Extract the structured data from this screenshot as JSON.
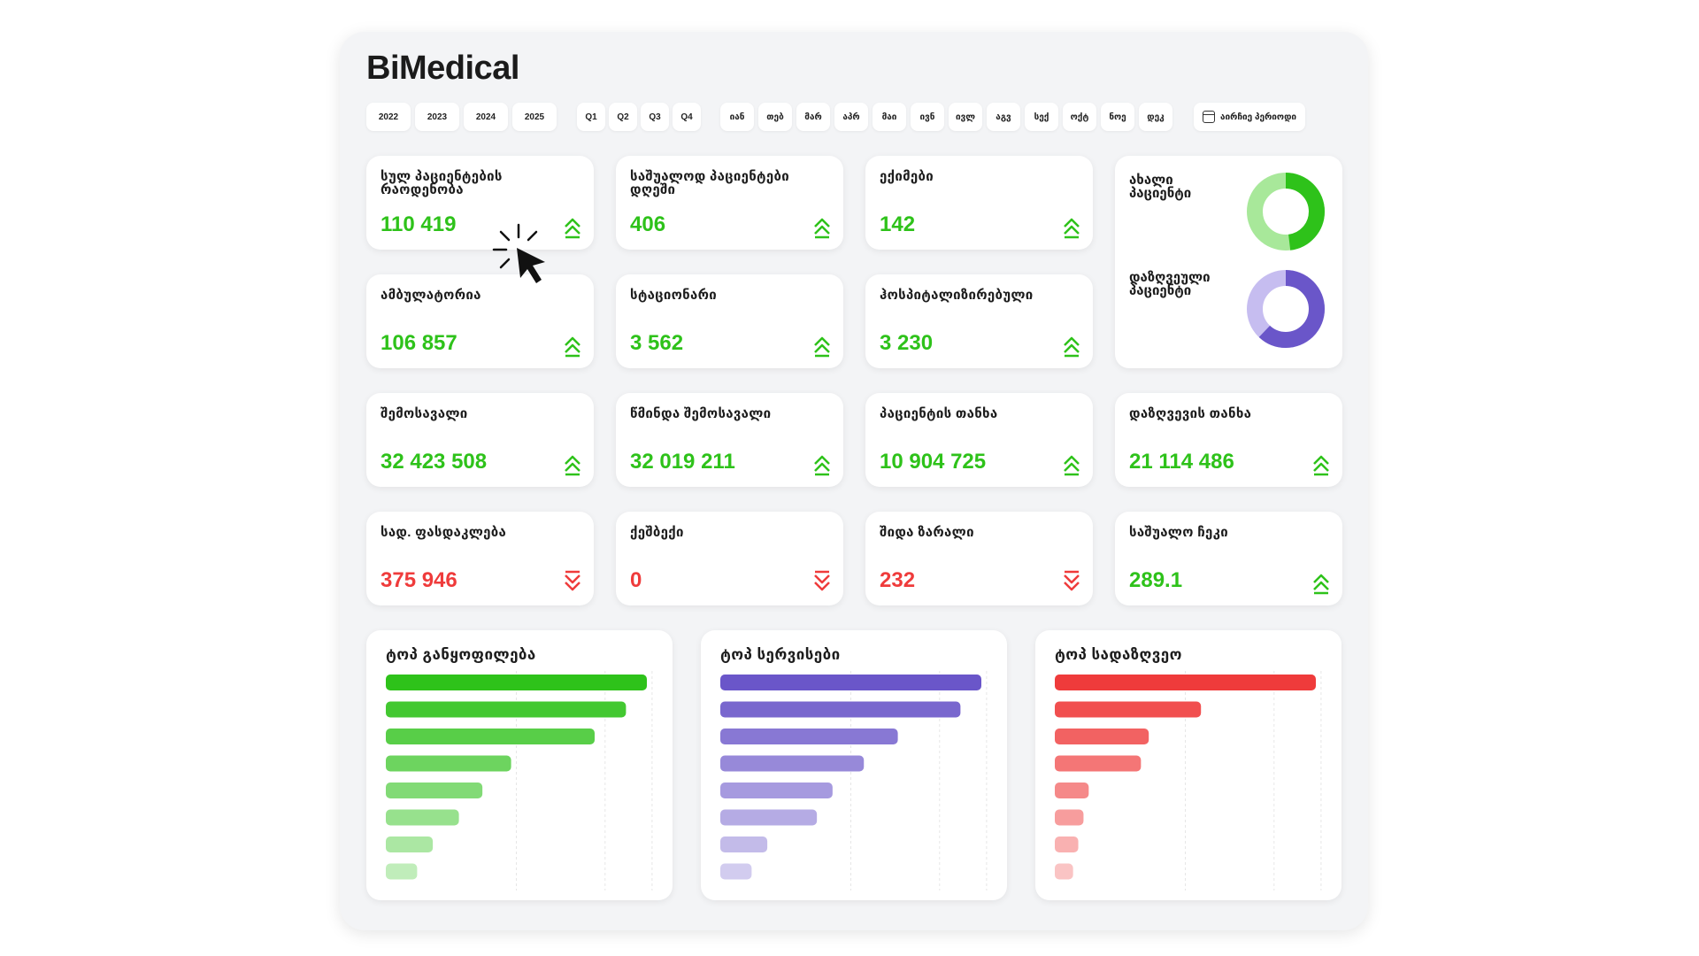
{
  "app": {
    "title": "BiMedical"
  },
  "filters": {
    "years": [
      "2022",
      "2023",
      "2024",
      "2025"
    ],
    "quarters": [
      "Q1",
      "Q2",
      "Q3",
      "Q4"
    ],
    "months": [
      "იან",
      "თებ",
      "მარ",
      "აპრ",
      "მაი",
      "ივნ",
      "ივლ",
      "აგვ",
      "სექ",
      "ოქტ",
      "ნოე",
      "დეკ"
    ],
    "period_label": "აირჩიე პერიოდი"
  },
  "kpis": {
    "total_patients": {
      "title": "სულ პაციენტების რაოდენობა",
      "value": "110 419",
      "trend": "up"
    },
    "avg_patients_daily": {
      "title": "საშუალოდ პაციენტები დღეში",
      "value": "406",
      "trend": "up"
    },
    "doctors": {
      "title": "ექიმები",
      "value": "142",
      "trend": "up"
    },
    "ambulatory": {
      "title": "ამბულატორია",
      "value": "106 857",
      "trend": "up"
    },
    "stationary": {
      "title": "სტაციონარი",
      "value": "3 562",
      "trend": "up"
    },
    "hospitalized": {
      "title": "ჰოსპიტალიზირებული",
      "value": "3 230",
      "trend": "up"
    },
    "income": {
      "title": "შემოსავალი",
      "value": "32 423 508",
      "trend": "up"
    },
    "net_income": {
      "title": "წმინდა შემოსავალი",
      "value": "32 019 211",
      "trend": "up"
    },
    "patient_amount": {
      "title": "პაციენტის თანხა",
      "value": "10 904 725",
      "trend": "up"
    },
    "insurance_amount": {
      "title": "დაზღვევის თანხა",
      "value": "21 114 486",
      "trend": "up"
    },
    "insurance_discount": {
      "title": "სად. ფასდაკლება",
      "value": "375 946",
      "trend": "down"
    },
    "discount": {
      "title": "ქეშბექი",
      "value": "0",
      "trend": "down"
    },
    "internal_loss": {
      "title": "შიდა ზარალი",
      "value": "232",
      "trend": "down"
    },
    "avg_check": {
      "title": "საშუალო ჩეკი",
      "value": "289.1",
      "trend": "up"
    }
  },
  "donuts": {
    "new_patients": {
      "label": "ახალი პაციენტი",
      "share": 0.48,
      "color": "#2ec21a",
      "track": "#a8e89a"
    },
    "insured_patients": {
      "label": "დაზღვეული პაციენტი",
      "share": 0.62,
      "color": "#6a56c9",
      "track": "#c6bdf0"
    }
  },
  "chart_data": [
    {
      "type": "bar",
      "title": "ტოპ განყოფილება",
      "orientation": "horizontal",
      "values": [
        100,
        92,
        80,
        48,
        37,
        28,
        18,
        12
      ],
      "xlim": [
        0,
        100
      ],
      "color": "#2ec21a"
    },
    {
      "type": "bar",
      "title": "ტოპ სერვისები",
      "orientation": "horizontal",
      "values": [
        100,
        92,
        68,
        55,
        43,
        37,
        18,
        12
      ],
      "xlim": [
        0,
        100
      ],
      "color": "#6a56c9"
    },
    {
      "type": "bar",
      "title": "ტოპ სადაზღვეო",
      "orientation": "horizontal",
      "values": [
        100,
        56,
        36,
        33,
        13,
        11,
        9,
        7
      ],
      "xlim": [
        0,
        100
      ],
      "color": "#ef3b3b"
    }
  ]
}
